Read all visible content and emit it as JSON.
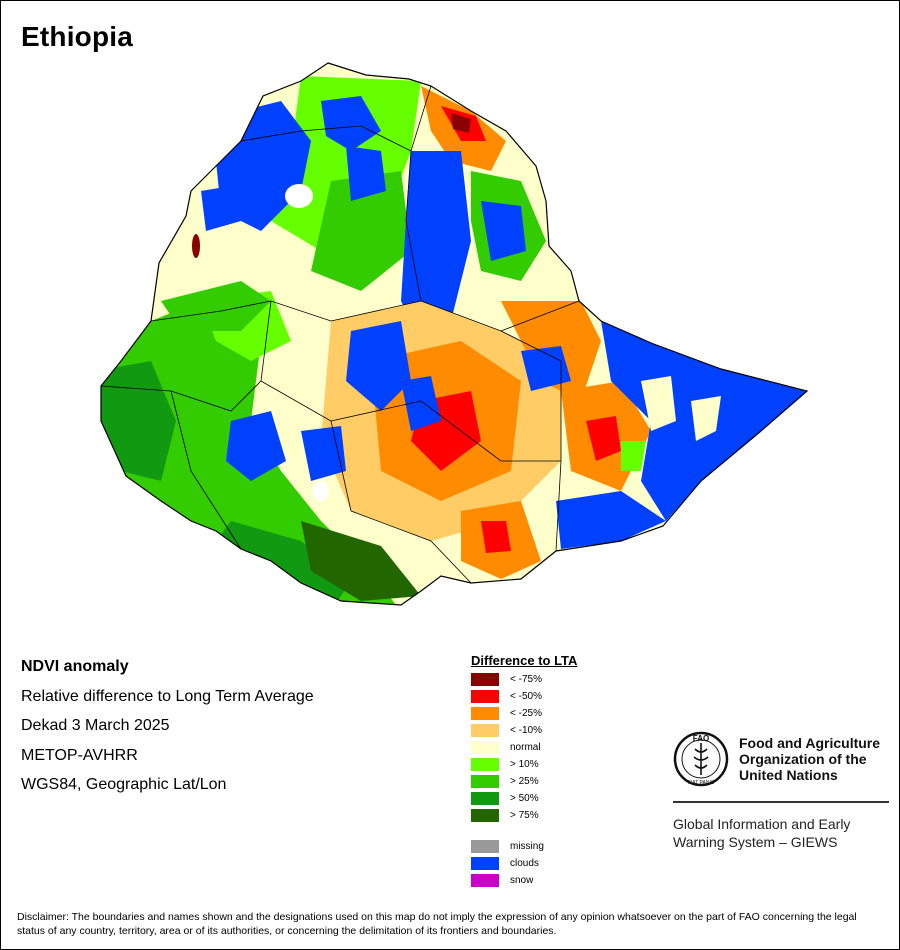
{
  "title": "Ethiopia",
  "info": {
    "product": "NDVI anomaly",
    "description": "Relative difference to Long Term Average",
    "period": "Dekad 3 March 2025",
    "sensor": "METOP-AVHRR",
    "projection": "WGS84, Geographic Lat/Lon"
  },
  "legend": {
    "title": "Difference to LTA",
    "classes": [
      {
        "label": "< -75%",
        "color": "#8b0000"
      },
      {
        "label": "< -50%",
        "color": "#ff0000"
      },
      {
        "label": "< -25%",
        "color": "#ff8c00"
      },
      {
        "label": "< -10%",
        "color": "#ffcc66"
      },
      {
        "label": "normal",
        "color": "#ffffcc"
      },
      {
        "label": "> 10%",
        "color": "#66ff00"
      },
      {
        "label": "> 25%",
        "color": "#33cc00"
      },
      {
        "label": "> 50%",
        "color": "#119911"
      },
      {
        "label": "> 75%",
        "color": "#226600"
      }
    ],
    "extra": [
      {
        "label": "missing",
        "color": "#999999"
      },
      {
        "label": "clouds",
        "color": "#0040ff"
      },
      {
        "label": "snow",
        "color": "#cc00cc"
      }
    ]
  },
  "org": {
    "name_line1": "Food and Agriculture",
    "name_line2": "Organization of the",
    "name_line3": "United Nations",
    "system_line1": "Global Information and Early",
    "system_line2": "Warning System – GIEWS",
    "emblem_text": "FAO",
    "motto": "FIAT PANIS"
  },
  "disclaimer": "Disclaimer: The boundaries and names shown and the designations used on this map do not imply the expression of any opinion whatsoever on the part of FAO concerning the legal status of any country, territory, area or of its authorities, or concerning the delimitation of its frontiers and boundaries."
}
